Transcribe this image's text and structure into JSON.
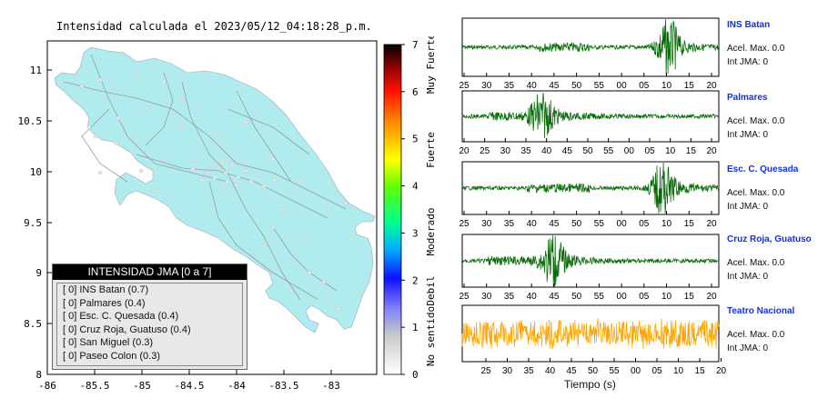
{
  "map": {
    "title": "Intensidad calculada el 2023/05/12_04:18:28_p.m.",
    "x_ticks": [
      "-86",
      "-85.5",
      "-85",
      "-84.5",
      "-84",
      "-83.5",
      "-83"
    ],
    "y_ticks": [
      "11",
      "10.5",
      "10",
      "9.5",
      "9",
      "8.5",
      "8"
    ],
    "legend_title": "INTENSIDAD JMA [0 a 7]",
    "legend_items": [
      "[ 0]  INS Batan (0.7)",
      "[ 0]  Palmares (0.4)",
      "[ 0]  Esc. C. Quesada (0.4)",
      "[ 0]  Cruz Roja, Guatuso (0.4)",
      "[ 0]  San Miguel (0.3)",
      "[ 0]  Paseo Colon (0.3)"
    ]
  },
  "colorbar": {
    "ticks": [
      "0",
      "1",
      "2",
      "3",
      "4",
      "5",
      "6",
      "7"
    ],
    "categories": [
      "No sentido",
      "Debil",
      "Moderado",
      "Fuerte",
      "Muy Fuerte"
    ],
    "colors": [
      "#ffffff",
      "#a0a0ff",
      "#2020ff",
      "#00c8ff",
      "#00ff60",
      "#ffff00",
      "#ff8000",
      "#ff0000",
      "#600000",
      "#000000"
    ]
  },
  "waveforms": {
    "xlabel": "Tiempo (s)",
    "stations": [
      {
        "name": "INS Batan",
        "accel": "Acel. Max. 0.0",
        "jma": "Int JMA: 0",
        "color": "#0a6b0a",
        "ticks": [
          "25",
          "30",
          "35",
          "40",
          "45",
          "50",
          "55",
          "00",
          "05",
          "10",
          "15",
          "20"
        ]
      },
      {
        "name": "Palmares",
        "accel": "Acel. Max. 0.0",
        "jma": "Int JMA: 0",
        "color": "#0a6b0a",
        "ticks": [
          "20",
          "25",
          "30",
          "35",
          "40",
          "45",
          "50",
          "55",
          "00",
          "05",
          "10",
          "15",
          "20"
        ]
      },
      {
        "name": "Esc. C. Quesada",
        "accel": "Acel. Max. 0.0",
        "jma": "Int JMA: 0",
        "color": "#0a6b0a",
        "ticks": [
          "25",
          "30",
          "35",
          "40",
          "45",
          "50",
          "55",
          "00",
          "05",
          "10",
          "15",
          "20"
        ]
      },
      {
        "name": "Cruz Roja, Guatuso",
        "accel": "Acel. Max. 0.0",
        "jma": "Int JMA: 0",
        "color": "#0a6b0a",
        "ticks": [
          "25",
          "30",
          "35",
          "40",
          "45",
          "50",
          "55",
          "00",
          "05",
          "10",
          "15",
          "20"
        ]
      },
      {
        "name": "Teatro Nacional",
        "accel": "Acel. Max. 0.0",
        "jma": "Int JMA: 0",
        "color": "#ffa500",
        "ticks": [
          "25",
          "30",
          "35",
          "40",
          "45",
          "50",
          "55",
          "00",
          "05",
          "10",
          "15",
          "20"
        ]
      }
    ]
  }
}
